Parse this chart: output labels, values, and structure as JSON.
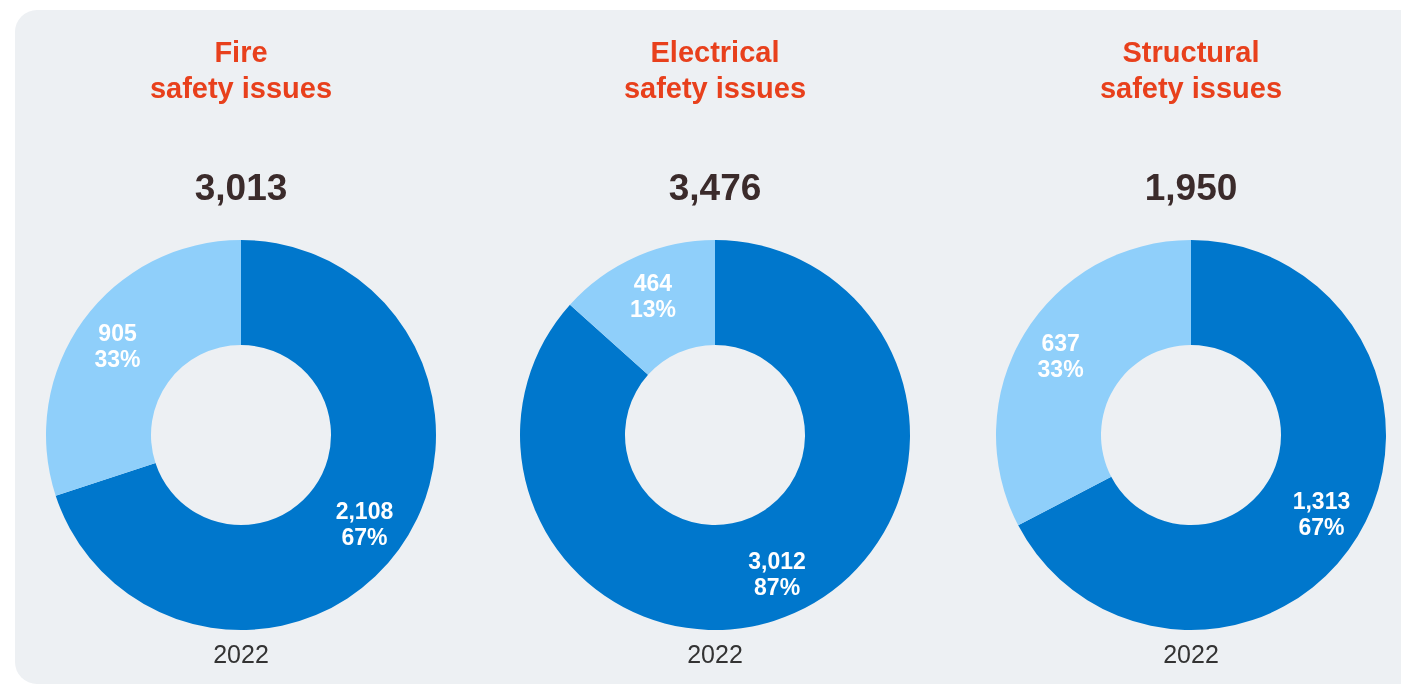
{
  "chart_data": [
    {
      "type": "donut",
      "title": "Fire\nsafety issues",
      "subtitle": "3,013",
      "xlabel": "2022",
      "categories": [
        null,
        null
      ],
      "values": [
        2108,
        905
      ],
      "colors": [
        "#0077cc",
        "#8fcffa"
      ],
      "value_labels": [
        "2,108\n67%",
        "905\n33%"
      ]
    },
    {
      "type": "donut",
      "title": "Electrical\nsafety issues",
      "subtitle": "3,476",
      "xlabel": "2022",
      "categories": [
        null,
        null
      ],
      "values": [
        3012,
        464
      ],
      "colors": [
        "#0077cc",
        "#8fcffa"
      ],
      "value_labels": [
        "3,012\n87%",
        "464\n13%"
      ]
    },
    {
      "type": "donut",
      "title": "Structural\nsafety issues",
      "subtitle": "1,950",
      "xlabel": "2022",
      "categories": [
        null,
        null
      ],
      "values": [
        1313,
        637
      ],
      "colors": [
        "#0077cc",
        "#8fcffa"
      ],
      "value_labels": [
        "1,313\n67%",
        "637\n33%"
      ]
    }
  ]
}
